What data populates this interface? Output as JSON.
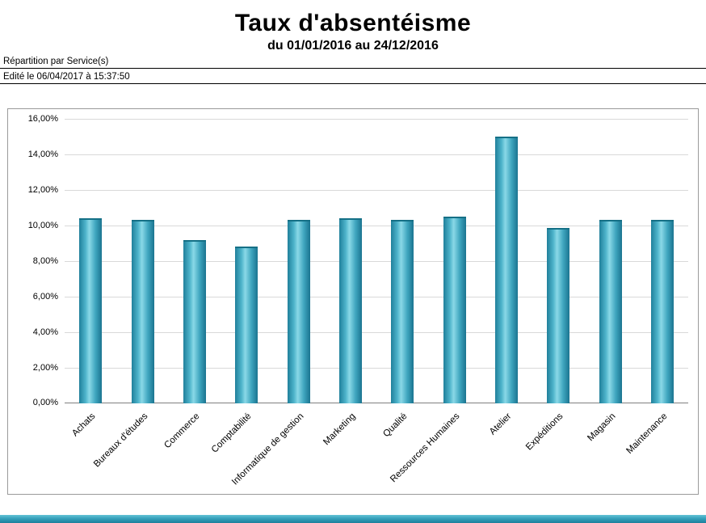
{
  "header": {
    "title": "Taux d'absentéisme",
    "subtitle": "du 01/01/2016 au 24/12/2016",
    "repartition_label": "Répartition par Service(s)",
    "edited_label": "Edité le 06/04/2017 à 15:37:50"
  },
  "colors": {
    "bar_dark_edge": "#1b7490",
    "bar_highlight": "#8ad8e7",
    "bar_main": "#3aa6bf",
    "footer_bar": "#35a0bb",
    "gridline": "#d9d9d9",
    "frame_border": "#9a9a9a"
  },
  "chart_data": {
    "type": "bar",
    "title": "",
    "xlabel": "",
    "ylabel": "",
    "categories": [
      "Achats",
      "Bureaux d'études",
      "Commerce",
      "Comptabilité",
      "Informatique de gestion",
      "Marketing",
      "Qualité",
      "Ressources Humaines",
      "Atelier",
      "Expéditions",
      "Magasin",
      "Maintenance"
    ],
    "values": [
      10.4,
      10.3,
      9.2,
      8.8,
      10.3,
      10.4,
      10.3,
      10.5,
      15.0,
      9.85,
      10.3,
      10.3
    ],
    "unit": "%",
    "ylim": [
      0,
      16
    ],
    "yticks": [
      {
        "value": 0,
        "label": "0,00%"
      },
      {
        "value": 2,
        "label": "2,00%"
      },
      {
        "value": 4,
        "label": "4,00%"
      },
      {
        "value": 6,
        "label": "6,00%"
      },
      {
        "value": 8,
        "label": "8,00%"
      },
      {
        "value": 10,
        "label": "10,00%"
      },
      {
        "value": 12,
        "label": "12,00%"
      },
      {
        "value": 14,
        "label": "14,00%"
      },
      {
        "value": 16,
        "label": "16,00%"
      }
    ],
    "grid": true,
    "legend": "none",
    "x_label_rotation_deg": -45
  }
}
